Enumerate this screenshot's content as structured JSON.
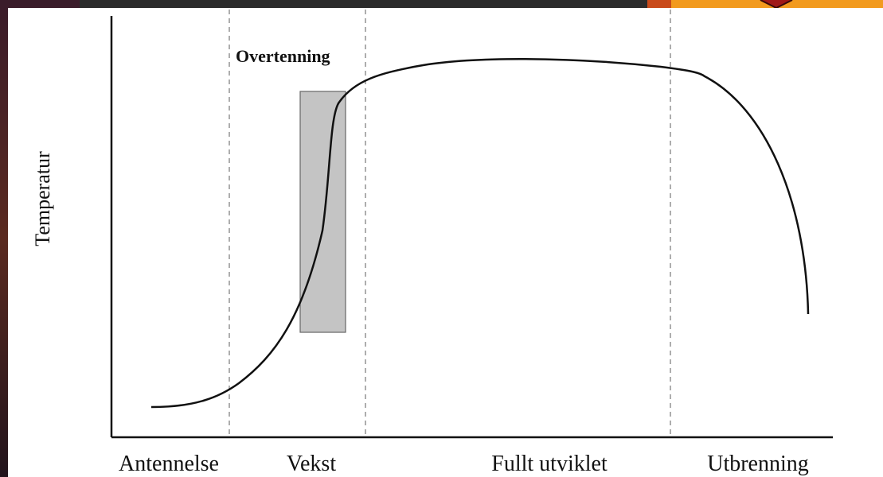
{
  "annotation": "Overtenning",
  "y_axis_label": "Temperatur",
  "phases": [
    "Antennelse",
    "Vekst",
    "Fullt utviklet",
    "Utbrenning"
  ]
}
